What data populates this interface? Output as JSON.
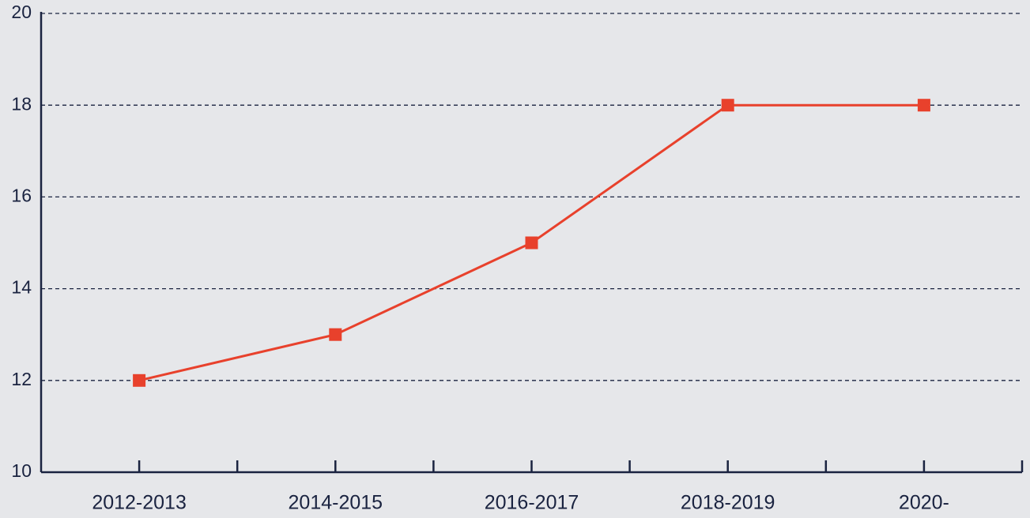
{
  "chart_data": {
    "type": "line",
    "categories": [
      "2012-2013",
      "2014-2015",
      "2016-2017",
      "2018-2019",
      "2020-"
    ],
    "series": [
      {
        "name": null,
        "color": "#e8412c",
        "values": [
          12,
          13,
          15,
          18,
          18
        ]
      }
    ],
    "ylim": [
      10,
      20
    ],
    "yticks": [
      10,
      12,
      14,
      16,
      18,
      20
    ],
    "grid": true
  }
}
